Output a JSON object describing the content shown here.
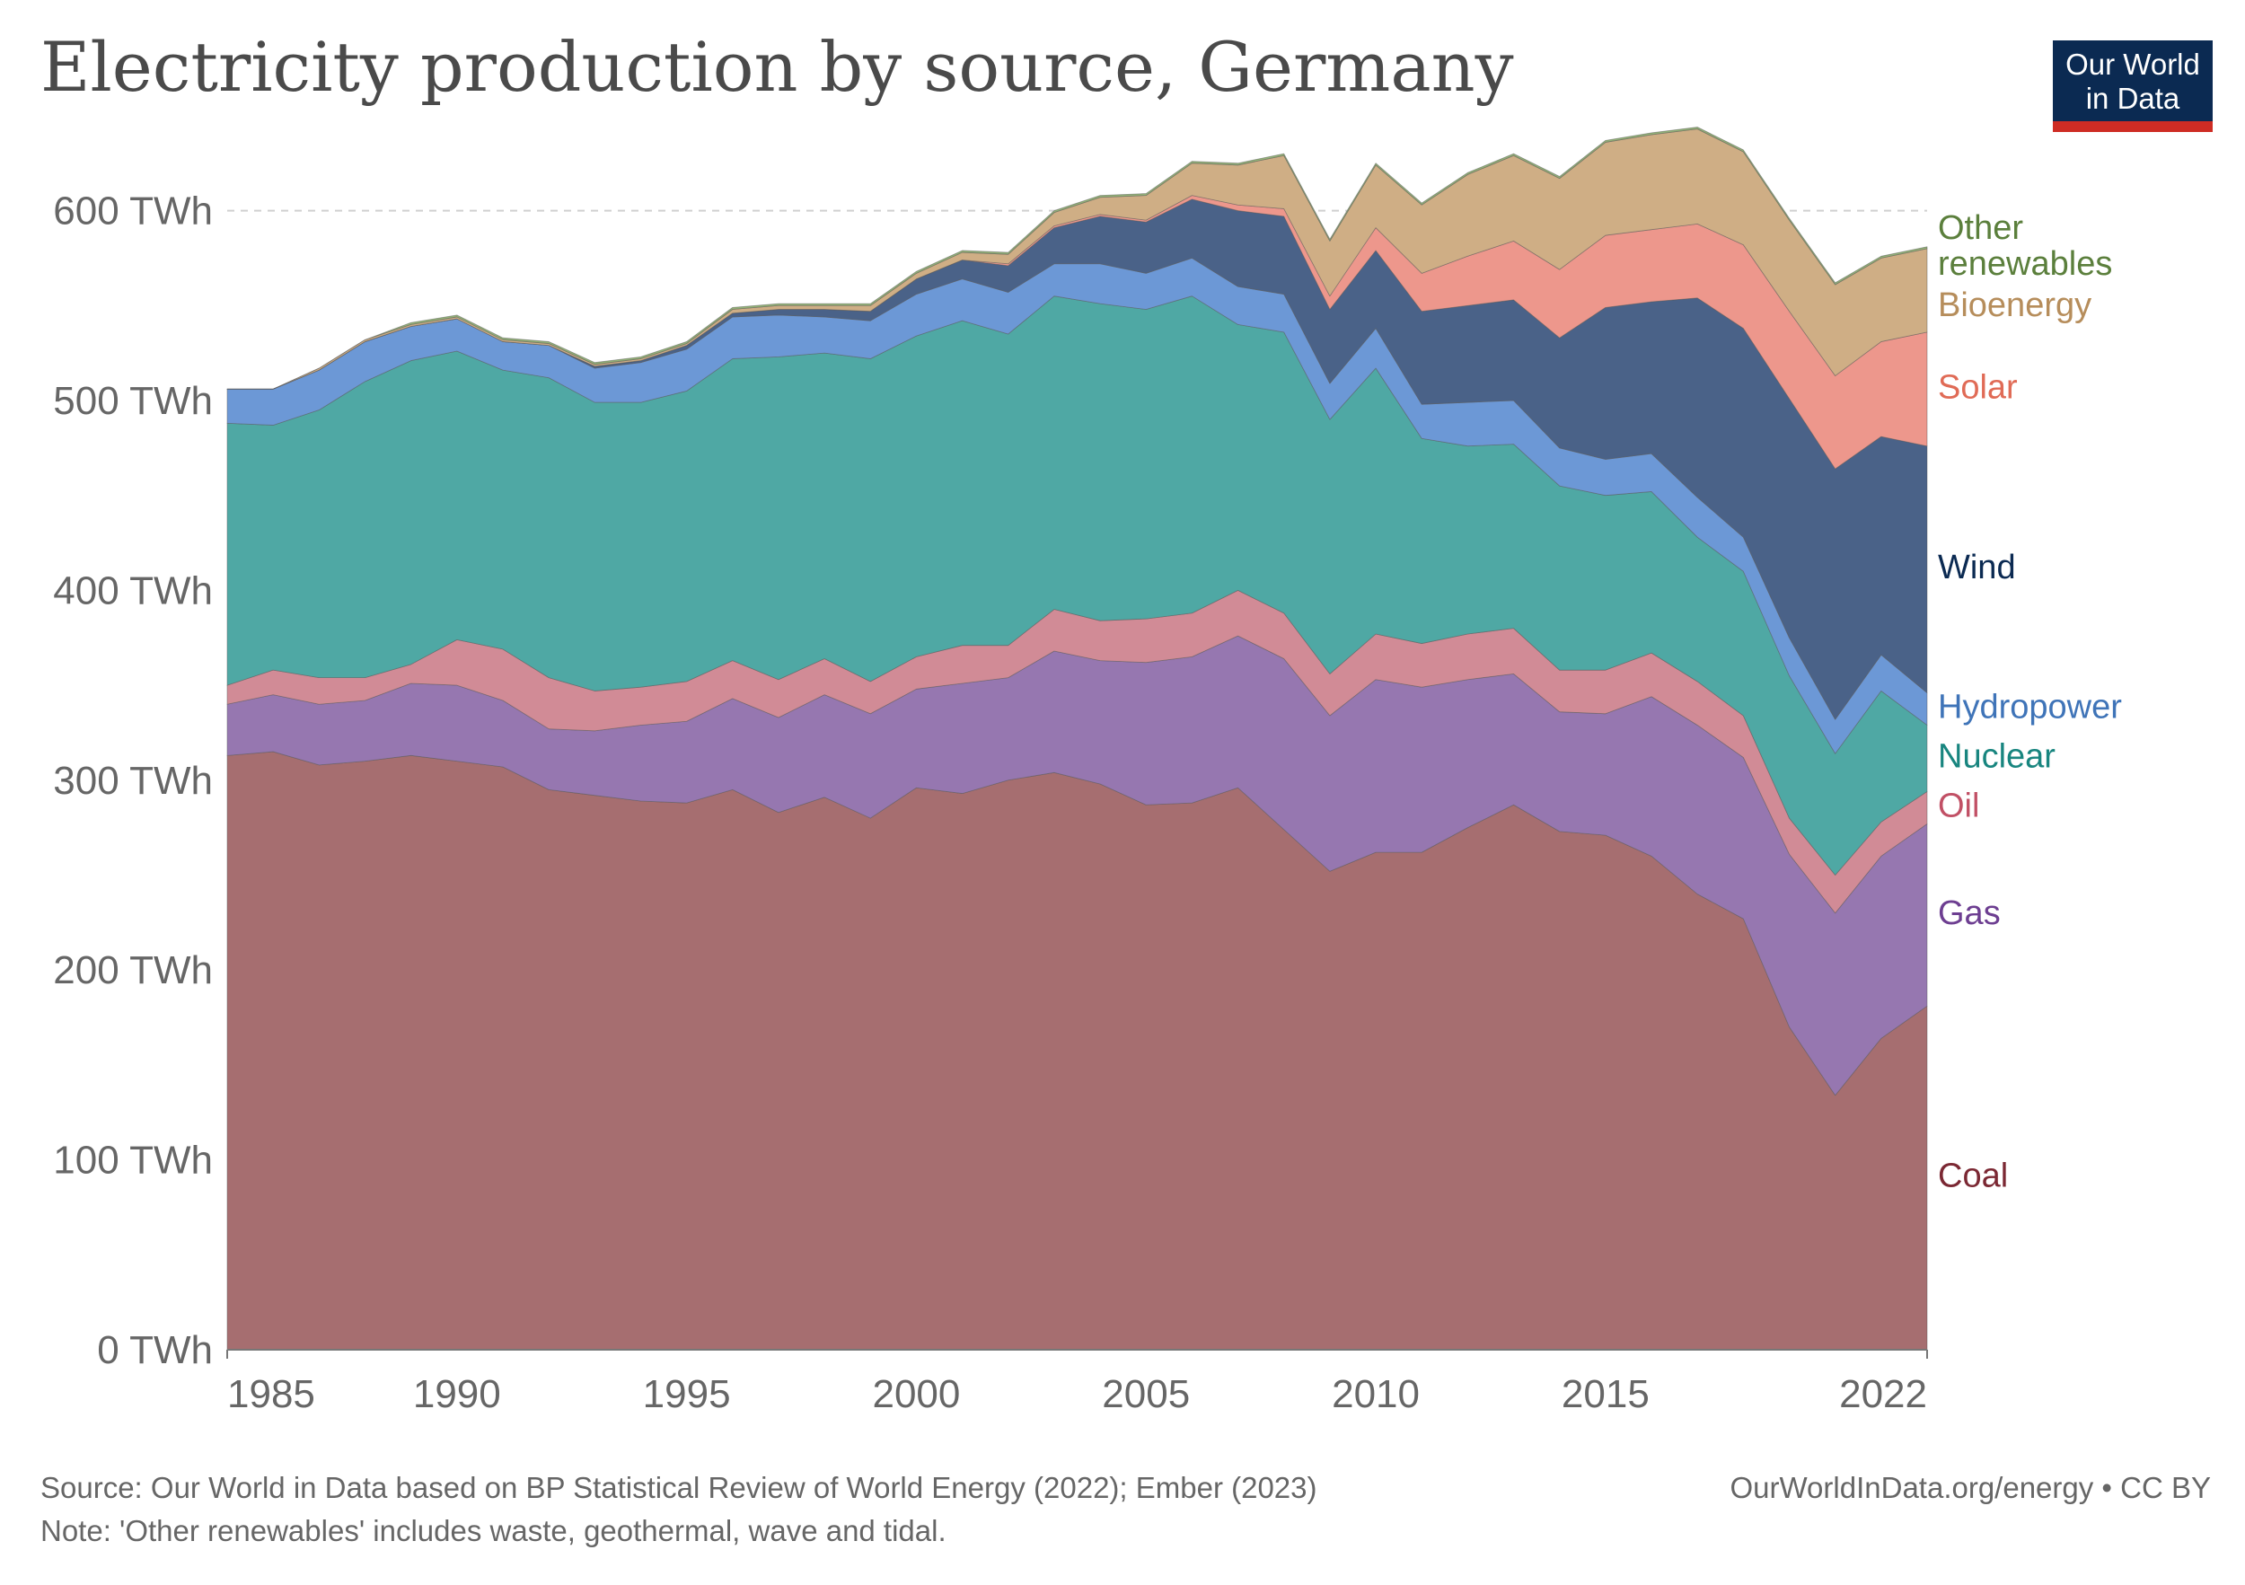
{
  "header": {
    "title": "Electricity production by source, Germany",
    "logo_line1": "Our World",
    "logo_line2": "in Data"
  },
  "footer": {
    "source": "Source: Our World in Data based on BP Statistical Review of World Energy (2022); Ember (2023)",
    "note": "Note: 'Other renewables' includes waste, geothermal, wave and tidal.",
    "credit": "OurWorldInData.org/energy • CC BY"
  },
  "chart_data": {
    "type": "area",
    "stacked": true,
    "title": "Electricity production by source, Germany",
    "y_unit": "TWh",
    "ylim": [
      0,
      640
    ],
    "y_ticks": [
      0,
      100,
      200,
      300,
      400,
      500,
      600
    ],
    "y_tick_labels": [
      "0 TWh",
      "100 TWh",
      "200 TWh",
      "300 TWh",
      "400 TWh",
      "500 TWh",
      "600 TWh"
    ],
    "xlim": [
      1985,
      2022
    ],
    "x_ticks": [
      1985,
      1990,
      1995,
      2000,
      2005,
      2010,
      2015,
      2022
    ],
    "x_tick_labels": [
      "1985",
      "1990",
      "1995",
      "2000",
      "2005",
      "2010",
      "2015",
      "2022"
    ],
    "grid": "horizontal dashed",
    "legend_position": "right",
    "x": [
      1985,
      1986,
      1987,
      1988,
      1989,
      1990,
      1991,
      1992,
      1993,
      1994,
      1995,
      1996,
      1997,
      1998,
      1999,
      2000,
      2001,
      2002,
      2003,
      2004,
      2005,
      2006,
      2007,
      2008,
      2009,
      2010,
      2011,
      2012,
      2013,
      2014,
      2015,
      2016,
      2017,
      2018,
      2019,
      2020,
      2021,
      2022
    ],
    "series": [
      {
        "name": "Coal",
        "color": "#a66e70",
        "label_color": "#7b2833",
        "values": [
          313,
          315,
          308,
          310,
          313,
          310,
          307,
          295,
          292,
          289,
          288,
          295,
          283,
          291,
          280,
          296,
          293,
          300,
          304,
          298,
          287,
          288,
          296,
          274,
          252,
          262,
          262,
          275,
          287,
          273,
          271,
          260,
          240,
          227,
          170,
          134,
          164,
          181
        ]
      },
      {
        "name": "Gas",
        "color": "#9677b0",
        "label_color": "#6d3e91",
        "values": [
          27,
          30,
          32,
          32,
          38,
          40,
          35,
          32,
          34,
          40,
          43,
          48,
          50,
          54,
          55,
          52,
          58,
          54,
          64,
          65,
          75,
          77,
          80,
          90,
          82,
          91,
          87,
          78,
          69,
          63,
          64,
          84,
          89,
          85,
          91,
          96,
          96,
          96
        ]
      },
      {
        "name": "Oil",
        "color": "#d18b96",
        "label_color": "#c15065",
        "values": [
          10,
          13,
          14,
          12,
          10,
          24,
          27,
          27,
          21,
          20,
          21,
          20,
          20,
          19,
          17,
          17,
          20,
          17,
          22,
          21,
          23,
          23,
          24,
          24,
          22,
          24,
          23,
          24,
          24,
          22,
          23,
          23,
          23,
          22,
          19,
          20,
          18,
          17
        ]
      },
      {
        "name": "Nuclear",
        "color": "#4fa8a4",
        "label_color": "#18857f",
        "values": [
          138,
          129,
          141,
          156,
          160,
          152,
          147,
          158,
          152,
          150,
          153,
          159,
          170,
          161,
          170,
          169,
          171,
          164,
          165,
          167,
          163,
          167,
          140,
          148,
          134,
          140,
          108,
          99,
          97,
          97,
          92,
          85,
          76,
          76,
          75,
          64,
          69,
          35
        ]
      },
      {
        "name": "Hydropower",
        "color": "#6c98d6",
        "label_color": "#3f74b8",
        "values": [
          18,
          19,
          21,
          21,
          18,
          17,
          15,
          17,
          18,
          21,
          22,
          22,
          22,
          19,
          20,
          22,
          22,
          22,
          17,
          21,
          19,
          20,
          20,
          20,
          19,
          21,
          18,
          23,
          23,
          20,
          19,
          20,
          21,
          18,
          20,
          18,
          19,
          17
        ]
      },
      {
        "name": "Wind",
        "color": "#4a6288",
        "label_color": "#0b2a52",
        "values": [
          0,
          0,
          0,
          0,
          0,
          0,
          0,
          0,
          1,
          1,
          2,
          2,
          3,
          4,
          5,
          8,
          10,
          14,
          19,
          25,
          27,
          31,
          40,
          41,
          39,
          41,
          49,
          51,
          53,
          58,
          80,
          80,
          105,
          110,
          126,
          132,
          115,
          130
        ]
      },
      {
        "name": "Solar",
        "color": "#ed978c",
        "label_color": "#e06b56",
        "values": [
          0,
          0,
          0,
          0,
          0,
          0,
          0,
          0,
          0,
          0,
          0,
          0,
          0,
          0,
          0,
          0,
          0,
          1,
          1,
          1,
          1,
          2,
          3,
          4,
          7,
          12,
          20,
          26,
          31,
          36,
          38,
          38,
          39,
          44,
          46,
          49,
          50,
          60
        ]
      },
      {
        "name": "Bioenergy",
        "color": "#cfae85",
        "label_color": "#b68d5b",
        "values": [
          0,
          0,
          1,
          1,
          1,
          1,
          1,
          1,
          1,
          1,
          1,
          2,
          2,
          2,
          3,
          3,
          4,
          5,
          7,
          9,
          13,
          17,
          21,
          28,
          29,
          33,
          36,
          43,
          45,
          48,
          49,
          50,
          50,
          49,
          48,
          48,
          44,
          44
        ]
      },
      {
        "name": "Other renewables",
        "color": "#93b277",
        "label_color": "#5b7f3c",
        "values": [
          0,
          0,
          0,
          0,
          1,
          1,
          1,
          1,
          1,
          1,
          1,
          1,
          1,
          1,
          1,
          1,
          1,
          1,
          1,
          1,
          1,
          1,
          1,
          1,
          1,
          1,
          1,
          1,
          1,
          1,
          1,
          1,
          1,
          1,
          1,
          1,
          1,
          1
        ]
      }
    ],
    "legend_labels": [
      {
        "series": "Other renewables",
        "lines": [
          "Other",
          "renewables"
        ]
      },
      {
        "series": "Bioenergy",
        "lines": [
          "Bioenergy"
        ]
      },
      {
        "series": "Solar",
        "lines": [
          "Solar"
        ]
      },
      {
        "series": "Wind",
        "lines": [
          "Wind"
        ]
      },
      {
        "series": "Hydropower",
        "lines": [
          "Hydropower"
        ]
      },
      {
        "series": "Nuclear",
        "lines": [
          "Nuclear"
        ]
      },
      {
        "series": "Oil",
        "lines": [
          "Oil"
        ]
      },
      {
        "series": "Gas",
        "lines": [
          "Gas"
        ]
      },
      {
        "series": "Coal",
        "lines": [
          "Coal"
        ]
      }
    ]
  }
}
